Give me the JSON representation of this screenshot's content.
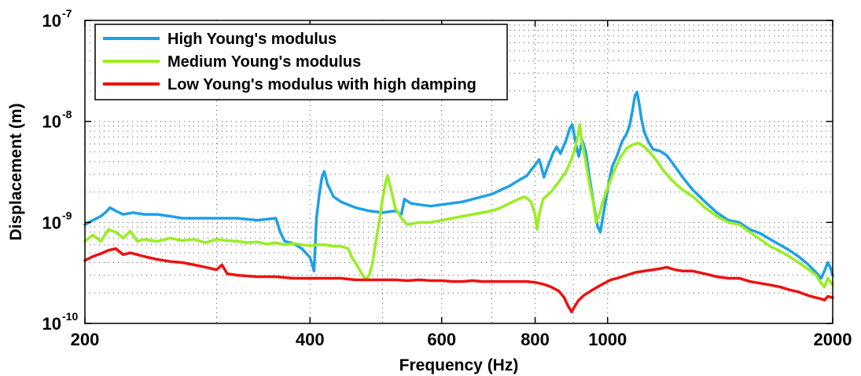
{
  "chart_data": {
    "type": "line",
    "title": "",
    "xlabel": "Frequency (Hz)",
    "ylabel": "Displacement (m)",
    "xscale": "log",
    "yscale": "log",
    "xlim": [
      200,
      2000
    ],
    "ylim": [
      1e-10,
      1e-07
    ],
    "x_ticks": [
      200,
      400,
      600,
      800,
      1000,
      2000
    ],
    "x_tick_labels": [
      "200",
      "400",
      "600",
      "800",
      "1000",
      "2000"
    ],
    "y_ticks": [
      {
        "value": 1e-10,
        "base": "10",
        "exp": "-10"
      },
      {
        "value": 1e-09,
        "base": "10",
        "exp": "-9"
      },
      {
        "value": 1e-08,
        "base": "10",
        "exp": "-8"
      },
      {
        "value": 1e-07,
        "base": "10",
        "exp": "-7"
      }
    ],
    "grid": "dotted minor grid",
    "legend_position": "top-left",
    "series": [
      {
        "name": "High Young's modulus",
        "color": "#1ea0e6",
        "points": [
          [
            200,
            9.5e-10
          ],
          [
            205,
            1.05e-09
          ],
          [
            210,
            1.15e-09
          ],
          [
            213,
            1.25e-09
          ],
          [
            216,
            1.4e-09
          ],
          [
            220,
            1.3e-09
          ],
          [
            225,
            1.2e-09
          ],
          [
            232,
            1.25e-09
          ],
          [
            240,
            1.2e-09
          ],
          [
            250,
            1.2e-09
          ],
          [
            260,
            1.15e-09
          ],
          [
            270,
            1.1e-09
          ],
          [
            280,
            1.1e-09
          ],
          [
            300,
            1.1e-09
          ],
          [
            320,
            1.1e-09
          ],
          [
            340,
            1.05e-09
          ],
          [
            360,
            1.1e-09
          ],
          [
            365,
            8e-10
          ],
          [
            370,
            6.5e-10
          ],
          [
            380,
            6.2e-10
          ],
          [
            390,
            5.5e-10
          ],
          [
            400,
            4.5e-10
          ],
          [
            405,
            3.3e-10
          ],
          [
            408,
            1.1e-09
          ],
          [
            412,
            2e-09
          ],
          [
            415,
            2.8e-09
          ],
          [
            418,
            3.2e-09
          ],
          [
            422,
            2.4e-09
          ],
          [
            430,
            1.8e-09
          ],
          [
            440,
            1.6e-09
          ],
          [
            460,
            1.4e-09
          ],
          [
            480,
            1.3e-09
          ],
          [
            500,
            1.25e-09
          ],
          [
            520,
            1.3e-09
          ],
          [
            530,
            1.2e-09
          ],
          [
            535,
            1.7e-09
          ],
          [
            545,
            1.55e-09
          ],
          [
            560,
            1.5e-09
          ],
          [
            580,
            1.45e-09
          ],
          [
            600,
            1.5e-09
          ],
          [
            620,
            1.55e-09
          ],
          [
            640,
            1.6e-09
          ],
          [
            660,
            1.7e-09
          ],
          [
            680,
            1.8e-09
          ],
          [
            700,
            1.9e-09
          ],
          [
            720,
            2.1e-09
          ],
          [
            740,
            2.3e-09
          ],
          [
            760,
            2.6e-09
          ],
          [
            780,
            2.9e-09
          ],
          [
            790,
            3.3e-09
          ],
          [
            800,
            3.7e-09
          ],
          [
            810,
            4.2e-09
          ],
          [
            815,
            3.6e-09
          ],
          [
            822,
            2.8e-09
          ],
          [
            832,
            3.6e-09
          ],
          [
            845,
            4.8e-09
          ],
          [
            855,
            5.6e-09
          ],
          [
            865,
            4.8e-09
          ],
          [
            880,
            6.5e-09
          ],
          [
            890,
            8.5e-09
          ],
          [
            897,
            9.3e-09
          ],
          [
            905,
            6.5e-09
          ],
          [
            915,
            4.5e-09
          ],
          [
            925,
            6.5e-09
          ],
          [
            935,
            5e-09
          ],
          [
            948,
            2.5e-09
          ],
          [
            960,
            1.4e-09
          ],
          [
            970,
            9e-10
          ],
          [
            978,
            8e-10
          ],
          [
            985,
            1.1e-09
          ],
          [
            995,
            1.7e-09
          ],
          [
            1005,
            2.6e-09
          ],
          [
            1015,
            3.6e-09
          ],
          [
            1030,
            4.6e-09
          ],
          [
            1045,
            6.3e-09
          ],
          [
            1060,
            7.5e-09
          ],
          [
            1070,
            9e-09
          ],
          [
            1080,
            1.3e-08
          ],
          [
            1088,
            1.8e-08
          ],
          [
            1095,
            1.95e-08
          ],
          [
            1102,
            1.5e-08
          ],
          [
            1110,
            1.05e-08
          ],
          [
            1120,
            7.8e-09
          ],
          [
            1135,
            6.2e-09
          ],
          [
            1150,
            5.3e-09
          ],
          [
            1175,
            5.1e-09
          ],
          [
            1200,
            4.6e-09
          ],
          [
            1230,
            3.6e-09
          ],
          [
            1260,
            2.8e-09
          ],
          [
            1300,
            2.1e-09
          ],
          [
            1350,
            1.6e-09
          ],
          [
            1400,
            1.25e-09
          ],
          [
            1450,
            1.05e-09
          ],
          [
            1500,
            1e-09
          ],
          [
            1550,
            8.5e-10
          ],
          [
            1600,
            7.8e-10
          ],
          [
            1650,
            6.8e-10
          ],
          [
            1700,
            6e-10
          ],
          [
            1750,
            5.3e-10
          ],
          [
            1800,
            4.6e-10
          ],
          [
            1850,
            3.9e-10
          ],
          [
            1900,
            3.2e-10
          ],
          [
            1930,
            2.8e-10
          ],
          [
            1950,
            3.3e-10
          ],
          [
            1970,
            4e-10
          ],
          [
            1985,
            3.6e-10
          ],
          [
            2000,
            3e-10
          ]
        ]
      },
      {
        "name": "Medium Young's modulus",
        "color": "#99ee22",
        "points": [
          [
            200,
            6.5e-10
          ],
          [
            205,
            7.5e-10
          ],
          [
            210,
            6.5e-10
          ],
          [
            215,
            8.5e-10
          ],
          [
            220,
            8e-10
          ],
          [
            225,
            7e-10
          ],
          [
            230,
            8.2e-10
          ],
          [
            235,
            6.5e-10
          ],
          [
            240,
            6.8e-10
          ],
          [
            250,
            6.5e-10
          ],
          [
            260,
            7e-10
          ],
          [
            270,
            6.6e-10
          ],
          [
            280,
            6.8e-10
          ],
          [
            290,
            6.3e-10
          ],
          [
            300,
            6.8e-10
          ],
          [
            310,
            6.6e-10
          ],
          [
            320,
            6.5e-10
          ],
          [
            330,
            6.3e-10
          ],
          [
            340,
            6.4e-10
          ],
          [
            350,
            6.1e-10
          ],
          [
            360,
            6.3e-10
          ],
          [
            370,
            6e-10
          ],
          [
            380,
            6.2e-10
          ],
          [
            390,
            6e-10
          ],
          [
            400,
            5.9e-10
          ],
          [
            410,
            6e-10
          ],
          [
            420,
            6e-10
          ],
          [
            430,
            5.8e-10
          ],
          [
            440,
            5.8e-10
          ],
          [
            450,
            5.5e-10
          ],
          [
            455,
            4.5e-10
          ],
          [
            460,
            4e-10
          ],
          [
            468,
            3.2e-10
          ],
          [
            475,
            2.7e-10
          ],
          [
            480,
            3e-10
          ],
          [
            485,
            4e-10
          ],
          [
            490,
            6.5e-10
          ],
          [
            495,
            1e-09
          ],
          [
            500,
            1.7e-09
          ],
          [
            505,
            2.5e-09
          ],
          [
            508,
            2.9e-09
          ],
          [
            512,
            2.3e-09
          ],
          [
            520,
            1.4e-09
          ],
          [
            530,
            1.1e-09
          ],
          [
            540,
            9.5e-10
          ],
          [
            560,
            1e-09
          ],
          [
            580,
            1e-09
          ],
          [
            600,
            1.05e-09
          ],
          [
            620,
            1.1e-09
          ],
          [
            640,
            1.15e-09
          ],
          [
            660,
            1.2e-09
          ],
          [
            680,
            1.25e-09
          ],
          [
            700,
            1.3e-09
          ],
          [
            720,
            1.4e-09
          ],
          [
            740,
            1.55e-09
          ],
          [
            760,
            1.7e-09
          ],
          [
            775,
            1.8e-09
          ],
          [
            790,
            1.6e-09
          ],
          [
            800,
            1.2e-09
          ],
          [
            805,
            8.5e-10
          ],
          [
            810,
            1.2e-09
          ],
          [
            820,
            1.7e-09
          ],
          [
            840,
            2e-09
          ],
          [
            860,
            2.5e-09
          ],
          [
            880,
            3.2e-09
          ],
          [
            895,
            4.2e-09
          ],
          [
            905,
            5.5e-09
          ],
          [
            912,
            7e-09
          ],
          [
            918,
            9.3e-09
          ],
          [
            923,
            6.5e-09
          ],
          [
            932,
            4.5e-09
          ],
          [
            945,
            2.5e-09
          ],
          [
            958,
            1.5e-09
          ],
          [
            965,
            1e-09
          ],
          [
            975,
            1.2e-09
          ],
          [
            985,
            1.6e-09
          ],
          [
            1000,
            2.2e-09
          ],
          [
            1020,
            3.2e-09
          ],
          [
            1040,
            4.4e-09
          ],
          [
            1060,
            5.4e-09
          ],
          [
            1080,
            5.9e-09
          ],
          [
            1100,
            6.1e-09
          ],
          [
            1120,
            5.6e-09
          ],
          [
            1140,
            4.9e-09
          ],
          [
            1160,
            4.2e-09
          ],
          [
            1190,
            3.2e-09
          ],
          [
            1220,
            2.6e-09
          ],
          [
            1260,
            2.1e-09
          ],
          [
            1300,
            1.8e-09
          ],
          [
            1350,
            1.4e-09
          ],
          [
            1400,
            1.15e-09
          ],
          [
            1450,
            1e-09
          ],
          [
            1500,
            9.5e-10
          ],
          [
            1550,
            8e-10
          ],
          [
            1600,
            6.8e-10
          ],
          [
            1650,
            5.8e-10
          ],
          [
            1700,
            5.2e-10
          ],
          [
            1750,
            4.6e-10
          ],
          [
            1800,
            4e-10
          ],
          [
            1850,
            3.5e-10
          ],
          [
            1900,
            3e-10
          ],
          [
            1930,
            2.5e-10
          ],
          [
            1950,
            2.3e-10
          ],
          [
            1970,
            2.8e-10
          ],
          [
            1985,
            2.6e-10
          ],
          [
            2000,
            2.4e-10
          ]
        ]
      },
      {
        "name": "Low Young's modulus with high damping",
        "color": "#ee1111",
        "points": [
          [
            200,
            4.2e-10
          ],
          [
            205,
            4.6e-10
          ],
          [
            210,
            4.9e-10
          ],
          [
            215,
            5.3e-10
          ],
          [
            220,
            5.5e-10
          ],
          [
            225,
            4.8e-10
          ],
          [
            230,
            5e-10
          ],
          [
            240,
            4.6e-10
          ],
          [
            250,
            4.3e-10
          ],
          [
            260,
            4.1e-10
          ],
          [
            270,
            4e-10
          ],
          [
            280,
            3.8e-10
          ],
          [
            290,
            3.6e-10
          ],
          [
            300,
            3.4e-10
          ],
          [
            305,
            3.8e-10
          ],
          [
            310,
            3.1e-10
          ],
          [
            320,
            3e-10
          ],
          [
            340,
            2.9e-10
          ],
          [
            360,
            2.9e-10
          ],
          [
            380,
            2.8e-10
          ],
          [
            400,
            2.8e-10
          ],
          [
            420,
            2.8e-10
          ],
          [
            440,
            2.8e-10
          ],
          [
            460,
            2.7e-10
          ],
          [
            480,
            2.7e-10
          ],
          [
            500,
            2.7e-10
          ],
          [
            520,
            2.7e-10
          ],
          [
            540,
            2.65e-10
          ],
          [
            560,
            2.7e-10
          ],
          [
            580,
            2.65e-10
          ],
          [
            600,
            2.65e-10
          ],
          [
            620,
            2.6e-10
          ],
          [
            640,
            2.6e-10
          ],
          [
            660,
            2.65e-10
          ],
          [
            680,
            2.6e-10
          ],
          [
            700,
            2.6e-10
          ],
          [
            720,
            2.6e-10
          ],
          [
            740,
            2.6e-10
          ],
          [
            760,
            2.6e-10
          ],
          [
            780,
            2.6e-10
          ],
          [
            800,
            2.55e-10
          ],
          [
            820,
            2.45e-10
          ],
          [
            840,
            2.3e-10
          ],
          [
            860,
            2.1e-10
          ],
          [
            875,
            1.8e-10
          ],
          [
            885,
            1.5e-10
          ],
          [
            895,
            1.3e-10
          ],
          [
            905,
            1.5e-10
          ],
          [
            915,
            1.7e-10
          ],
          [
            930,
            1.9e-10
          ],
          [
            950,
            2.1e-10
          ],
          [
            970,
            2.3e-10
          ],
          [
            990,
            2.5e-10
          ],
          [
            1010,
            2.7e-10
          ],
          [
            1030,
            2.8e-10
          ],
          [
            1060,
            3e-10
          ],
          [
            1090,
            3.2e-10
          ],
          [
            1120,
            3.3e-10
          ],
          [
            1150,
            3.4e-10
          ],
          [
            1180,
            3.5e-10
          ],
          [
            1200,
            3.6e-10
          ],
          [
            1230,
            3.4e-10
          ],
          [
            1260,
            3.3e-10
          ],
          [
            1300,
            3.3e-10
          ],
          [
            1350,
            3.1e-10
          ],
          [
            1400,
            2.9e-10
          ],
          [
            1450,
            2.8e-10
          ],
          [
            1500,
            2.8e-10
          ],
          [
            1550,
            2.6e-10
          ],
          [
            1600,
            2.5e-10
          ],
          [
            1650,
            2.4e-10
          ],
          [
            1700,
            2.3e-10
          ],
          [
            1750,
            2.15e-10
          ],
          [
            1800,
            2.05e-10
          ],
          [
            1850,
            1.9e-10
          ],
          [
            1900,
            1.8e-10
          ],
          [
            1930,
            1.75e-10
          ],
          [
            1950,
            1.7e-10
          ],
          [
            1970,
            1.85e-10
          ],
          [
            2000,
            1.8e-10
          ]
        ]
      }
    ]
  }
}
